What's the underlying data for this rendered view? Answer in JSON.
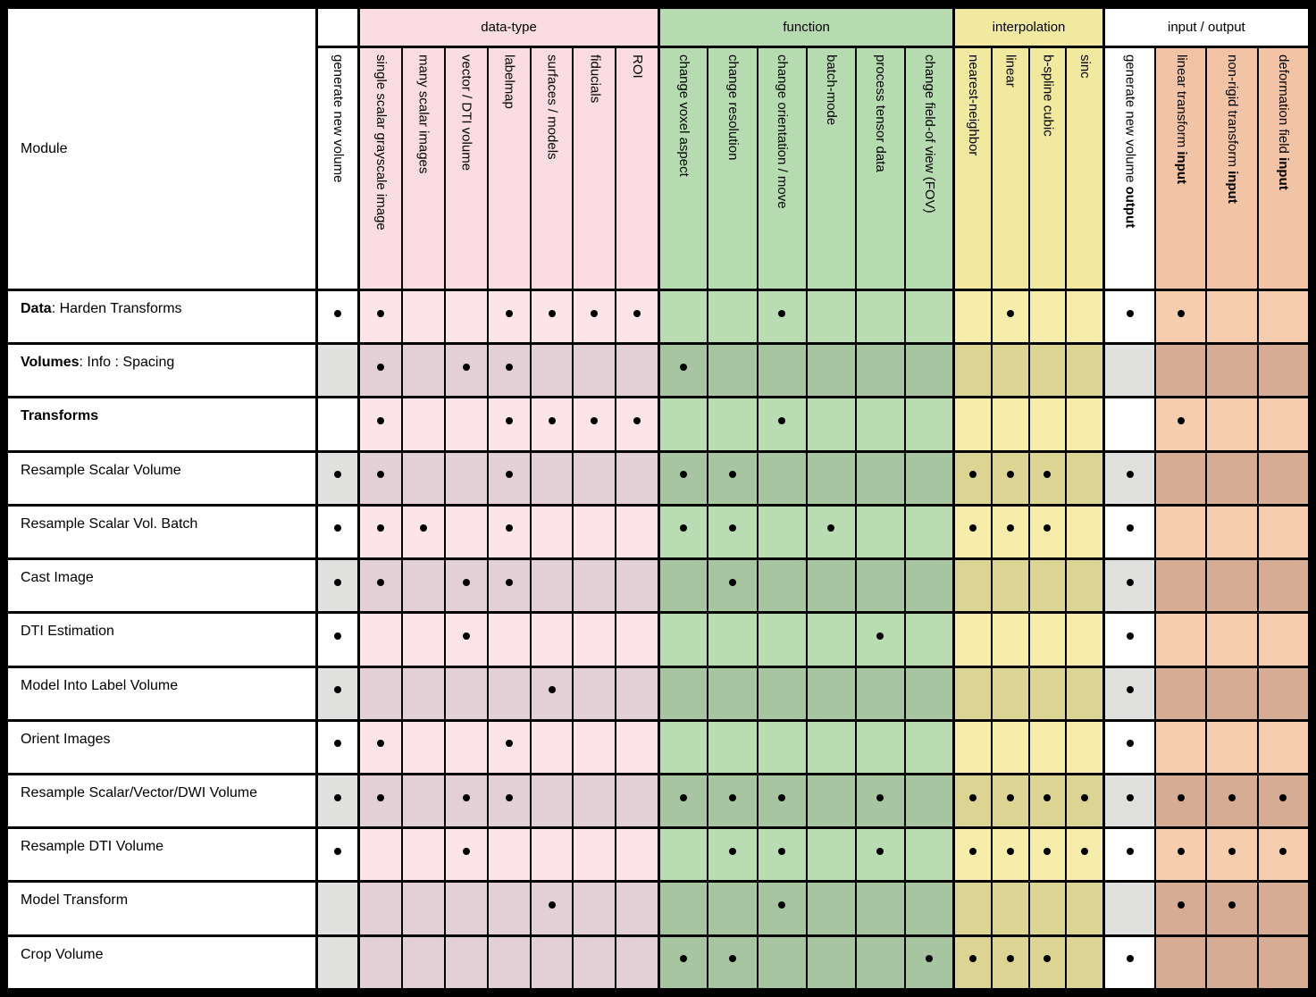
{
  "table": {
    "module_header": "Module",
    "groups": [
      {
        "label": "",
        "span": 1,
        "tint": "plain"
      },
      {
        "label": "data-type",
        "span": 7,
        "tint": "pink"
      },
      {
        "label": "function",
        "span": 6,
        "tint": "green"
      },
      {
        "label": "interpolation",
        "span": 4,
        "tint": "yellow"
      },
      {
        "label": "input / output",
        "span": 4,
        "tint": "plain"
      }
    ],
    "columns": [
      {
        "label": "generate new volume",
        "bold": "",
        "tint": "plain"
      },
      {
        "label": "single scalar grayscale image",
        "bold": "",
        "tint": "pink"
      },
      {
        "label": "many scalar images",
        "bold": "",
        "tint": "pink"
      },
      {
        "label": "vector / DTI volume",
        "bold": "",
        "tint": "pink"
      },
      {
        "label": "labelmap",
        "bold": "",
        "tint": "pink"
      },
      {
        "label": "surfaces / models",
        "bold": "",
        "tint": "pink"
      },
      {
        "label": "fiducials",
        "bold": "",
        "tint": "pink"
      },
      {
        "label": "ROI",
        "bold": "",
        "tint": "pink"
      },
      {
        "label": "change voxel aspect",
        "bold": "",
        "tint": "green"
      },
      {
        "label": "change resolution",
        "bold": "",
        "tint": "green"
      },
      {
        "label": "change orientation / move",
        "bold": "",
        "tint": "green"
      },
      {
        "label": "batch-mode",
        "bold": "",
        "tint": "green"
      },
      {
        "label": "process tensor data",
        "bold": "",
        "tint": "green"
      },
      {
        "label": "change field-of view (FOV)",
        "bold": "",
        "tint": "green"
      },
      {
        "label": "nearest-neighbor",
        "bold": "",
        "tint": "yellow"
      },
      {
        "label": "linear",
        "bold": "",
        "tint": "yellow"
      },
      {
        "label": "b-spline cubic",
        "bold": "",
        "tint": "yellow"
      },
      {
        "label": "sinc",
        "bold": "",
        "tint": "yellow"
      },
      {
        "label": "generate new volume ",
        "bold": "output",
        "tint": "plain"
      },
      {
        "label": "linear transform ",
        "bold": "input",
        "tint": "salmon"
      },
      {
        "label": "non-rigid transform ",
        "bold": "input",
        "tint": "salmon"
      },
      {
        "label": "deformation field ",
        "bold": "input",
        "tint": "salmon"
      }
    ],
    "rows": [
      {
        "name_bold": "Data",
        "name_rest": ": Harden Transforms",
        "shaded": false,
        "dots": [
          1,
          1,
          0,
          0,
          1,
          1,
          1,
          1,
          0,
          0,
          1,
          0,
          0,
          0,
          0,
          1,
          0,
          0,
          1,
          1,
          0,
          0
        ]
      },
      {
        "name_bold": "Volumes",
        "name_rest": ": Info : Spacing",
        "shaded": true,
        "dots": [
          0,
          1,
          0,
          1,
          1,
          0,
          0,
          0,
          1,
          0,
          0,
          0,
          0,
          0,
          0,
          0,
          0,
          0,
          0,
          0,
          0,
          0
        ]
      },
      {
        "name_bold": "Transforms",
        "name_rest": "",
        "shaded": false,
        "dots": [
          0,
          1,
          0,
          0,
          1,
          1,
          1,
          1,
          0,
          0,
          1,
          0,
          0,
          0,
          0,
          0,
          0,
          0,
          0,
          1,
          0,
          0
        ]
      },
      {
        "name_bold": "",
        "name_rest": "Resample Scalar Volume",
        "shaded": true,
        "dots": [
          1,
          1,
          0,
          0,
          1,
          0,
          0,
          0,
          1,
          1,
          0,
          0,
          0,
          0,
          1,
          1,
          1,
          0,
          1,
          0,
          0,
          0
        ]
      },
      {
        "name_bold": "",
        "name_rest": "Resample Scalar Vol. Batch",
        "shaded": false,
        "dots": [
          1,
          1,
          1,
          0,
          1,
          0,
          0,
          0,
          1,
          1,
          0,
          1,
          0,
          0,
          1,
          1,
          1,
          0,
          1,
          0,
          0,
          0
        ]
      },
      {
        "name_bold": "",
        "name_rest": "Cast Image",
        "shaded": true,
        "dots": [
          1,
          1,
          0,
          1,
          1,
          0,
          0,
          0,
          0,
          1,
          0,
          0,
          0,
          0,
          0,
          0,
          0,
          0,
          1,
          0,
          0,
          0
        ]
      },
      {
        "name_bold": "",
        "name_rest": "DTI Estimation",
        "shaded": false,
        "dots": [
          1,
          0,
          0,
          1,
          0,
          0,
          0,
          0,
          0,
          0,
          0,
          0,
          1,
          0,
          0,
          0,
          0,
          0,
          1,
          0,
          0,
          0
        ]
      },
      {
        "name_bold": "",
        "name_rest": "Model Into Label Volume",
        "shaded": true,
        "dots": [
          1,
          0,
          0,
          0,
          0,
          1,
          0,
          0,
          0,
          0,
          0,
          0,
          0,
          0,
          0,
          0,
          0,
          0,
          1,
          0,
          0,
          0
        ]
      },
      {
        "name_bold": "",
        "name_rest": "Orient Images",
        "shaded": false,
        "dots": [
          1,
          1,
          0,
          0,
          1,
          0,
          0,
          0,
          0,
          0,
          0,
          0,
          0,
          0,
          0,
          0,
          0,
          0,
          1,
          0,
          0,
          0
        ]
      },
      {
        "name_bold": "",
        "name_rest": "Resample Scalar/Vector/DWI Volume",
        "shaded": true,
        "dots": [
          1,
          1,
          0,
          1,
          1,
          0,
          0,
          0,
          1,
          1,
          1,
          0,
          1,
          0,
          1,
          1,
          1,
          1,
          1,
          1,
          1,
          1
        ]
      },
      {
        "name_bold": "",
        "name_rest": "Resample DTI Volume",
        "shaded": false,
        "dots": [
          1,
          0,
          0,
          1,
          0,
          0,
          0,
          0,
          0,
          1,
          1,
          0,
          1,
          0,
          1,
          1,
          1,
          1,
          1,
          1,
          1,
          1
        ]
      },
      {
        "name_bold": "",
        "name_rest": "Model Transform",
        "shaded": true,
        "dots": [
          0,
          0,
          0,
          0,
          0,
          1,
          0,
          0,
          0,
          0,
          1,
          0,
          0,
          0,
          0,
          0,
          0,
          0,
          0,
          1,
          1,
          0
        ]
      },
      {
        "name_bold": "",
        "name_rest": "Crop Volume",
        "shaded": true,
        "unshaded_cols": [
          18
        ],
        "dots": [
          0,
          0,
          0,
          0,
          0,
          0,
          0,
          0,
          1,
          1,
          0,
          0,
          0,
          1,
          1,
          1,
          1,
          0,
          1,
          0,
          0,
          0
        ]
      }
    ]
  },
  "palette": {
    "header": {
      "plain": "#ffffff",
      "pink": "#fadce2",
      "green": "#b7dbb1",
      "yellow": "#f2e9a0",
      "salmon": "#f3c3a5"
    },
    "cell": {
      "plain": {
        "light": "#ffffff",
        "dark": "#e0e1df"
      },
      "pink": {
        "light": "#fce4e9",
        "dark": "#e3d0d6"
      },
      "green": {
        "light": "#b9dcb3",
        "dark": "#a7c5a1"
      },
      "yellow": {
        "light": "#f5eda9",
        "dark": "#dcd492"
      },
      "salmon": {
        "light": "#f7cdb0",
        "dark": "#d7ac95"
      }
    },
    "dot": "#000000",
    "border": "#000000"
  }
}
